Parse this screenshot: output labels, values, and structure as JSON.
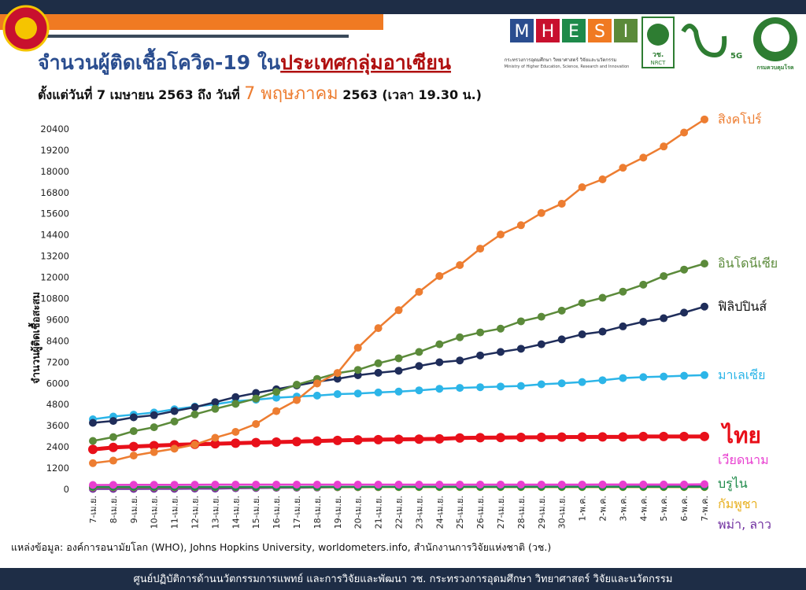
{
  "header": {
    "title_main": "จำนวนผู้ติดเชื้อโควิด-19 ใน",
    "title_highlight": "ประเทศกลุ่มอาเซียน",
    "subtitle_start": "ตั้งแต่วันที่ 7 เมษายน 2563 ถึง วันที่ ",
    "subtitle_date": "7 พฤษภาคม",
    "subtitle_end": " 2563 (เวลา 19.30 น.)",
    "logo_letters": [
      "M",
      "H",
      "E",
      "S",
      "I"
    ],
    "ministry_th": "กระทรวงการอุดมศึกษา วิทยาศาสตร์ วิจัยและนวัตกรรม",
    "ministry_en": "Ministry of Higher Education, Science, Research and Innovation",
    "nrct_th": "วช.",
    "nrct_en": "NRCT",
    "fiveg": "5G",
    "ddc": "กรมควบคุมโรค"
  },
  "chart_data": {
    "type": "line",
    "y_label": "จำนวนผู้ติดเชื้อสะสม",
    "categories": [
      "7-เม.ย.",
      "8-เม.ย.",
      "9-เม.ย.",
      "10-เม.ย.",
      "11-เม.ย.",
      "12-เม.ย.",
      "13-เม.ย.",
      "14-เม.ย.",
      "15-เม.ย.",
      "16-เม.ย.",
      "17-เม.ย.",
      "18-เม.ย.",
      "19-เม.ย.",
      "20-เม.ย.",
      "21-เม.ย.",
      "22-เม.ย.",
      "23-เม.ย.",
      "24-เม.ย.",
      "25-เม.ย.",
      "26-เม.ย.",
      "27-เม.ย.",
      "28-เม.ย.",
      "29-เม.ย.",
      "30-เม.ย.",
      "1-พ.ค.",
      "2-พ.ค.",
      "3-พ.ค.",
      "4-พ.ค.",
      "5-พ.ค.",
      "6-พ.ค.",
      "7-พ.ค."
    ],
    "ylim": [
      0,
      21600
    ],
    "yticks": [
      0,
      1200,
      2400,
      3600,
      4800,
      6000,
      7200,
      8400,
      9600,
      10800,
      12000,
      13200,
      14400,
      15600,
      16800,
      18000,
      19200,
      20400
    ],
    "grid": false,
    "series": [
      {
        "name": "สิงคโปร์",
        "color": "#ed7d31",
        "values": [
          1481,
          1623,
          1910,
          2108,
          2299,
          2532,
          2918,
          3252,
          3699,
          4427,
          5050,
          5992,
          6588,
          8014,
          9125,
          10141,
          11178,
          12075,
          12693,
          13624,
          14423,
          14951,
          15641,
          16169,
          17101,
          17548,
          18205,
          18778,
          19410,
          20198,
          20939
        ]
      },
      {
        "name": "อินโดนีเซีย",
        "color": "#5b8a3a",
        "values": [
          2738,
          2956,
          3293,
          3512,
          3842,
          4241,
          4557,
          4839,
          5136,
          5516,
          5923,
          6248,
          6575,
          6760,
          7135,
          7418,
          7775,
          8211,
          8607,
          8882,
          9096,
          9511,
          9771,
          10118,
          10551,
          10843,
          11192,
          11587,
          12071,
          12438,
          12776
        ]
      },
      {
        "name": "ฟิลิปปินส์",
        "color": "#1f2d5a",
        "values": [
          3764,
          3870,
          4076,
          4195,
          4428,
          4648,
          4932,
          5223,
          5453,
          5660,
          5878,
          6087,
          6259,
          6459,
          6599,
          6710,
          6981,
          7192,
          7294,
          7579,
          7777,
          7958,
          8212,
          8488,
          8772,
          8928,
          9223,
          9485,
          9684,
          10004,
          10343
        ]
      },
      {
        "name": "มาเลเซีย",
        "color": "#2cb5e8",
        "values": [
          3963,
          4119,
          4228,
          4346,
          4530,
          4683,
          4817,
          4987,
          5072,
          5182,
          5251,
          5305,
          5389,
          5425,
          5482,
          5532,
          5603,
          5691,
          5742,
          5780,
          5820,
          5851,
          5945,
          6002,
          6071,
          6176,
          6298,
          6353,
          6383,
          6428,
          6467
        ]
      },
      {
        "name": "ไทย",
        "color": "#e8101a",
        "values": [
          2258,
          2369,
          2423,
          2473,
          2518,
          2551,
          2579,
          2613,
          2643,
          2672,
          2700,
          2733,
          2765,
          2792,
          2811,
          2826,
          2839,
          2854,
          2907,
          2922,
          2931,
          2938,
          2947,
          2954,
          2960,
          2966,
          2969,
          2987,
          2988,
          2989,
          2992
        ]
      },
      {
        "name": "เวียดนาม",
        "color": "#e83fd0",
        "values": [
          245,
          251,
          255,
          257,
          258,
          262,
          265,
          266,
          267,
          268,
          268,
          268,
          268,
          268,
          268,
          268,
          268,
          268,
          270,
          270,
          270,
          270,
          270,
          270,
          270,
          271,
          271,
          271,
          271,
          271,
          288
        ]
      },
      {
        "name": "บรูไน",
        "color": "#1e8a4a",
        "values": [
          135,
          135,
          135,
          136,
          136,
          136,
          136,
          136,
          136,
          136,
          136,
          137,
          138,
          138,
          138,
          138,
          138,
          138,
          138,
          138,
          138,
          138,
          138,
          138,
          138,
          138,
          138,
          141,
          141,
          141,
          141
        ]
      },
      {
        "name": "กัมพูชา",
        "color": "#e8b020",
        "values": [
          114,
          115,
          117,
          117,
          119,
          120,
          122,
          122,
          122,
          122,
          122,
          122,
          122,
          122,
          122,
          122,
          122,
          122,
          122,
          122,
          122,
          122,
          122,
          122,
          122,
          122,
          122,
          122,
          122,
          122,
          122
        ]
      },
      {
        "name": "พม่า, ลาว",
        "color": "#7030a0",
        "values": [
          22,
          22,
          23,
          27,
          28,
          38,
          41,
          62,
          74,
          85,
          88,
          98,
          111,
          119,
          121,
          127,
          139,
          144,
          144,
          146,
          146,
          150,
          150,
          151,
          151,
          151,
          155,
          161,
          161,
          161,
          176
        ]
      }
    ]
  },
  "source": "แหล่งข้อมูล: องค์การอนามัยโลก (WHO), Johns Hopkins University, worldometers.info, สำนักงานการวิจัยแห่งชาติ (วช.)",
  "footer": "ศูนย์ปฏิบัติการด้านนวัตกรรมการแพทย์ และการวิจัยและพัฒนา  วช.   กระทรวงการอุดมศึกษา วิทยาศาสตร์ วิจัยและนวัตกรรม"
}
